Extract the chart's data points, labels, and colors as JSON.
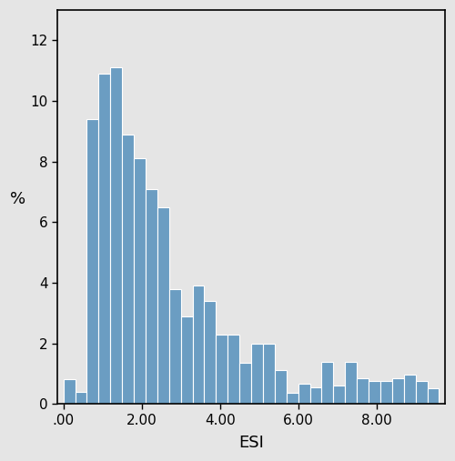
{
  "bar_values": [
    0.8,
    0.4,
    9.4,
    10.9,
    11.1,
    8.9,
    8.1,
    7.1,
    6.5,
    3.8,
    2.9,
    3.9,
    3.4,
    2.3,
    2.3,
    1.35,
    2.0,
    2.0,
    1.1,
    0.35,
    0.65,
    0.55,
    1.4,
    0.6,
    1.4,
    0.85,
    0.75,
    0.75,
    0.85,
    0.95,
    0.75,
    0.5
  ],
  "bin_start": 0.0,
  "bin_width": 0.3,
  "bar_color": "#6b9dc2",
  "bar_edge_color": "#ffffff",
  "bar_linewidth": 0.8,
  "background_color": "#e5e5e5",
  "xlabel": "ESI",
  "ylabel": "%",
  "xlim": [
    -0.15,
    9.75
  ],
  "ylim": [
    0,
    13
  ],
  "xtick_labels": [
    ".00",
    "2.00",
    "4.00",
    "6.00",
    "8.00"
  ],
  "xtick_positions": [
    0.0,
    2.0,
    4.0,
    6.0,
    8.0
  ],
  "ytick_labels": [
    "0",
    "2",
    "4",
    "6",
    "8",
    "10",
    "12"
  ],
  "ytick_positions": [
    0,
    2,
    4,
    6,
    8,
    10,
    12
  ],
  "xlabel_fontsize": 13,
  "ylabel_fontsize": 13,
  "tick_fontsize": 11,
  "figure_facecolor": "#e5e5e5"
}
